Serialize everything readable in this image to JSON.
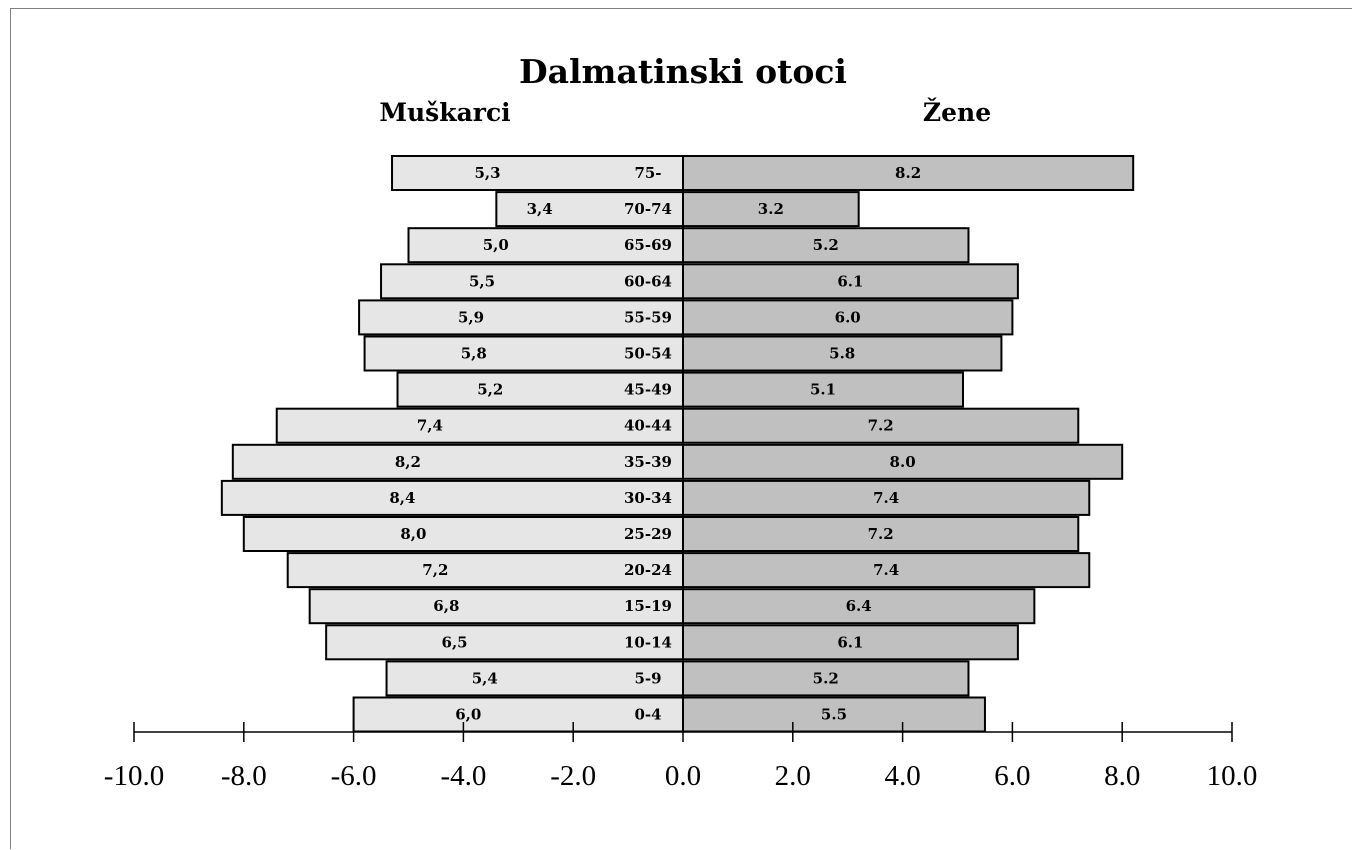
{
  "chart_data": {
    "type": "bar",
    "title": "Dalmatinski otoci",
    "left_label": "Muškarci",
    "right_label": "Žene",
    "xlim": [
      -10.0,
      10.0
    ],
    "xticks": [
      -10.0,
      -8.0,
      -6.0,
      -4.0,
      -2.0,
      0.0,
      2.0,
      4.0,
      6.0,
      8.0,
      10.0
    ],
    "xtick_labels": [
      "-10.0",
      "-8.0",
      "-6.0",
      "-4.0",
      "-2.0",
      "0.0",
      "2.0",
      "4.0",
      "6.0",
      "8.0",
      "10.0"
    ],
    "categories": [
      "75-",
      "70-74",
      "65-69",
      "60-64",
      "55-59",
      "50-54",
      "45-49",
      "40-44",
      "35-39",
      "30-34",
      "25-29",
      "20-24",
      "15-19",
      "10-14",
      "5-9",
      "0-4"
    ],
    "series": [
      {
        "name": "Muškarci",
        "color": "#e6e6e6",
        "values": [
          5.3,
          3.4,
          5.0,
          5.5,
          5.9,
          5.8,
          5.2,
          7.4,
          8.2,
          8.4,
          8.0,
          7.2,
          6.8,
          6.5,
          5.4,
          6.0
        ],
        "labels": [
          "5,3",
          "3,4",
          "5,0",
          "5,5",
          "5,9",
          "5,8",
          "5,2",
          "7,4",
          "8,2",
          "8,4",
          "8,0",
          "7,2",
          "6,8",
          "6,5",
          "5,4",
          "6,0"
        ]
      },
      {
        "name": "Žene",
        "color": "#c0c0c0",
        "values": [
          8.2,
          3.2,
          5.2,
          6.1,
          6.0,
          5.8,
          5.1,
          7.2,
          8.0,
          7.4,
          7.2,
          7.4,
          6.4,
          6.1,
          5.2,
          5.5
        ],
        "labels": [
          "8.2",
          "3.2",
          "5.2",
          "6.1",
          "6.0",
          "5.8",
          "5.1",
          "7.2",
          "8.0",
          "7.4",
          "7.2",
          "7.4",
          "6.4",
          "6.1",
          "5.2",
          "5.5"
        ]
      }
    ]
  }
}
